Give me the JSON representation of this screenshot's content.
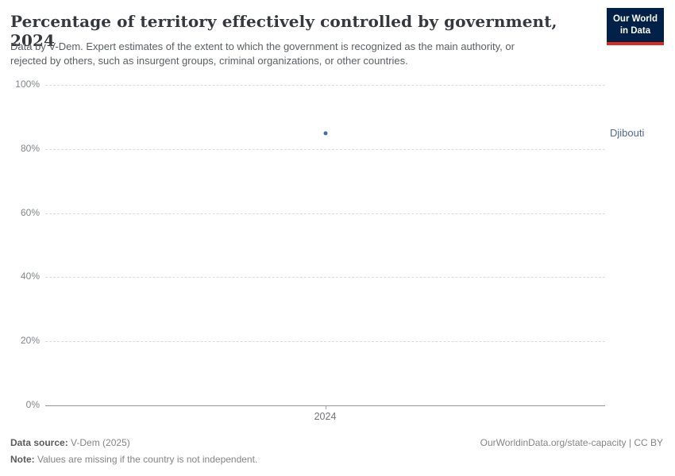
{
  "header": {
    "title": "Percentage of territory effectively controlled by government, 2024",
    "subtitle_line1": "Data by V-Dem. Expert estimates of the extent to which the government is recognized as the main authority, or",
    "subtitle_line2": "rejected by others, such as insurgent groups, criminal organizations, or other countries.",
    "logo": {
      "line1": "Our World",
      "line2": "in Data",
      "bg_color": "#002147",
      "stripe_color": "#dc2a1c"
    }
  },
  "chart_data": {
    "type": "scatter",
    "title": "Percentage of territory effectively controlled by government, 2024",
    "x": [
      2024
    ],
    "series": [
      {
        "name": "Djibouti",
        "values": [
          85
        ],
        "color": "#4C6A9C"
      }
    ],
    "xticks": [
      "2024"
    ],
    "yticks": [
      {
        "value": 0,
        "label": "0%"
      },
      {
        "value": 20,
        "label": "20%"
      },
      {
        "value": 40,
        "label": "40%"
      },
      {
        "value": 60,
        "label": "60%"
      },
      {
        "value": 80,
        "label": "80%"
      },
      {
        "value": 100,
        "label": "100%"
      }
    ],
    "ylim": [
      0,
      100
    ],
    "xlabel": "",
    "ylabel": "",
    "grid": "horizontal-dashed",
    "legend_position": "right-of-point"
  },
  "footer": {
    "data_source_label": "Data source:",
    "data_source_value": " V-Dem (2025)",
    "note_label": "Note:",
    "note_value": " Values are missing if the country is not independent.",
    "link_text": "OurWorldinData.org/state-capacity | CC BY"
  }
}
